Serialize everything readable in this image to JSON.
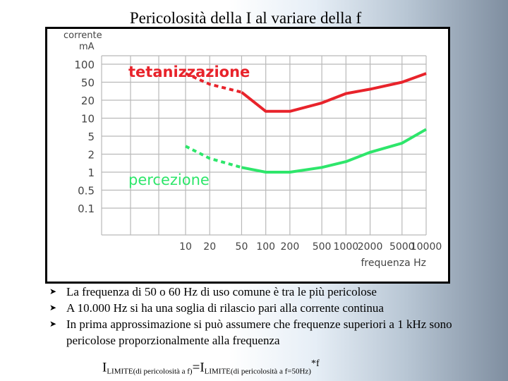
{
  "slide": {
    "title": "Pericolosità della I al variare della f",
    "bullets": [
      "La frequenza di 50 o 60 Hz di uso comune è tra le più pericolose",
      "A 10.000 Hz si ha una soglia di rilascio pari alla corrente continua",
      "In prima approssimazione si può assumere che frequenze superiori a 1 kHz sono pericolose proporzionalmente alla frequenza"
    ],
    "bullet_icon": "arrowhead-bullet-icon",
    "formula": {
      "lhs": "I",
      "lhs_sub": "LIMITE(di pericolosità a f)",
      "eq": "=",
      "rhs": "I",
      "rhs_sub": "LIMITE(di pericolosità a f=50Hz)",
      "tail": "*f"
    }
  },
  "chart_data": {
    "type": "line",
    "ylabel": "corrente mA",
    "xlabel": "frequenza Hz",
    "x_ticks": [
      "10",
      "20",
      "50",
      "100",
      "200",
      "500",
      "1000",
      "2000",
      "5000",
      "10000"
    ],
    "y_ticks": [
      "100",
      "50",
      "20",
      "10",
      "5",
      "2",
      "1",
      "0.5",
      "0.1"
    ],
    "x_scale": "log",
    "y_scale": "log",
    "grid": true,
    "series": [
      {
        "name": "tetanizzazione",
        "color": "#e8232b",
        "dashed_x": [
          10,
          20,
          50
        ],
        "dashed_y": [
          70,
          45,
          30
        ],
        "x": [
          50,
          100,
          200,
          500,
          1000,
          2000,
          5000,
          10000
        ],
        "y": [
          30,
          13,
          13,
          18,
          28,
          35,
          50,
          70
        ]
      },
      {
        "name": "percezione",
        "color": "#2ee66b",
        "dashed_x": [
          10,
          20,
          50
        ],
        "dashed_y": [
          3,
          1.7,
          1.2
        ],
        "x": [
          50,
          100,
          200,
          500,
          1000,
          2000,
          5000,
          10000
        ],
        "y": [
          1.2,
          1,
          1,
          1.2,
          1.5,
          2.2,
          3.5,
          6.5
        ]
      }
    ]
  }
}
